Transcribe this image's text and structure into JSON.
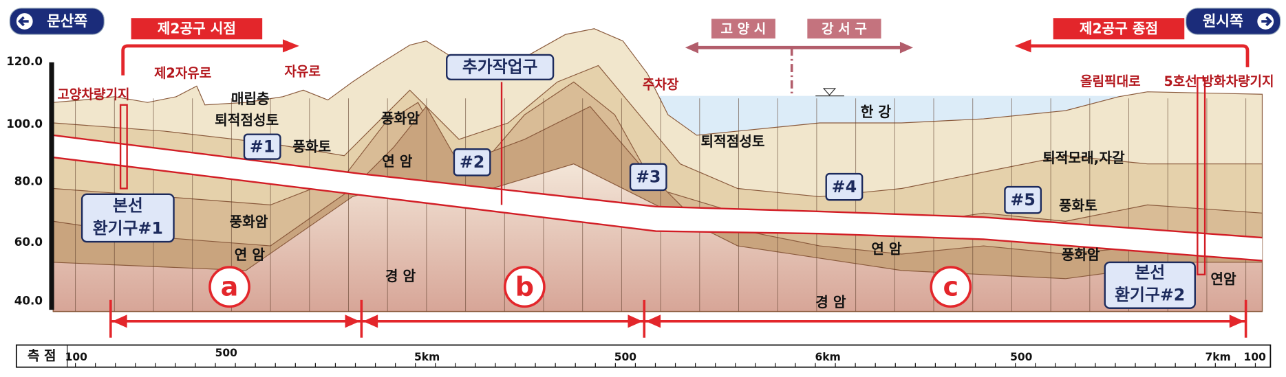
{
  "header": {
    "left_direction": "문산쪽",
    "right_direction": "원시쪽",
    "start_banner": "제2공구 시점",
    "end_banner": "제2공구 종점",
    "district_left": "고 양 시",
    "district_right": "강 서 구"
  },
  "elevation_labels": [
    "120.0",
    "100.0",
    "80.0",
    "60.0",
    "40.0"
  ],
  "landmarks": [
    "고양차량기지",
    "제2자유로",
    "자유로",
    "주차장",
    "올림픽대로",
    "5호선 방화차량기지"
  ],
  "strata_labels": [
    "매립층",
    "퇴적점성토",
    "풍화토",
    "풍화암",
    "연 암",
    "풍화암",
    "연 암",
    "경 암",
    "한 강",
    "퇴적점성토",
    "퇴적모래,자갈",
    "풍화토",
    "연 암",
    "풍화암",
    "경 암",
    "연암"
  ],
  "shafts": [
    "#1",
    "#2",
    "#3",
    "#4",
    "#5"
  ],
  "work_shaft": "추가작업구",
  "vent_1": [
    "본선",
    "환기구#1"
  ],
  "vent_2": [
    "본선",
    "환기구#2"
  ],
  "sections": [
    "a",
    "b",
    "c"
  ],
  "station_bar": {
    "title": "측 점",
    "labels": [
      "100",
      "500",
      "5km",
      "500",
      "6km",
      "500",
      "7km",
      "100"
    ]
  }
}
